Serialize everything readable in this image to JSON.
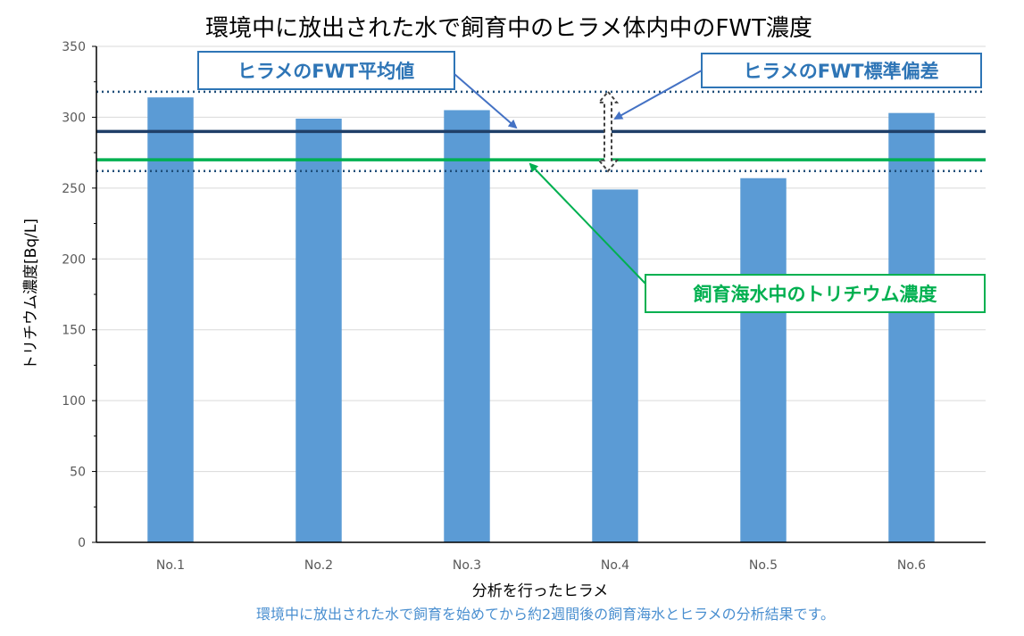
{
  "chart_data": {
    "type": "bar",
    "title": "環境中に放出された水で飼育中のヒラメ体内中のFWT濃度",
    "xlabel": "分析を行ったヒラメ",
    "ylabel": "トリチウム濃度[Bq/L]",
    "ylim": [
      0,
      350
    ],
    "yticks": [
      0,
      50,
      100,
      150,
      200,
      250,
      300,
      350
    ],
    "categories": [
      "No.1",
      "No.2",
      "No.3",
      "No.4",
      "No.5",
      "No.6"
    ],
    "values": [
      314,
      299,
      305,
      249,
      257,
      303
    ],
    "grid": true,
    "reference_lines": {
      "fwt_mean": 290,
      "fwt_std_upper": 318,
      "fwt_std_lower": 262,
      "seawater": 270
    },
    "annotations": {
      "mean_label": "ヒラメのFWT平均値",
      "std_label": "ヒラメのFWT標準偏差",
      "seawater_label": "飼育海水中のトリチウム濃度"
    },
    "caption": "環境中に放出された水で飼育を始めてから約2週間後の飼育海水とヒラメの分析結果です。"
  },
  "colors": {
    "bar": "#5b9bd5",
    "mean_line": "#1f3f68",
    "seawater_line": "#00b050",
    "std_line": "#1f4e79",
    "grid": "#d9d9d9",
    "axis": "#000000",
    "callout_blue": "#2e75b6",
    "callout_green": "#00b050",
    "arrow_blue": "#4472c4",
    "caption": "#4a8fd0"
  }
}
